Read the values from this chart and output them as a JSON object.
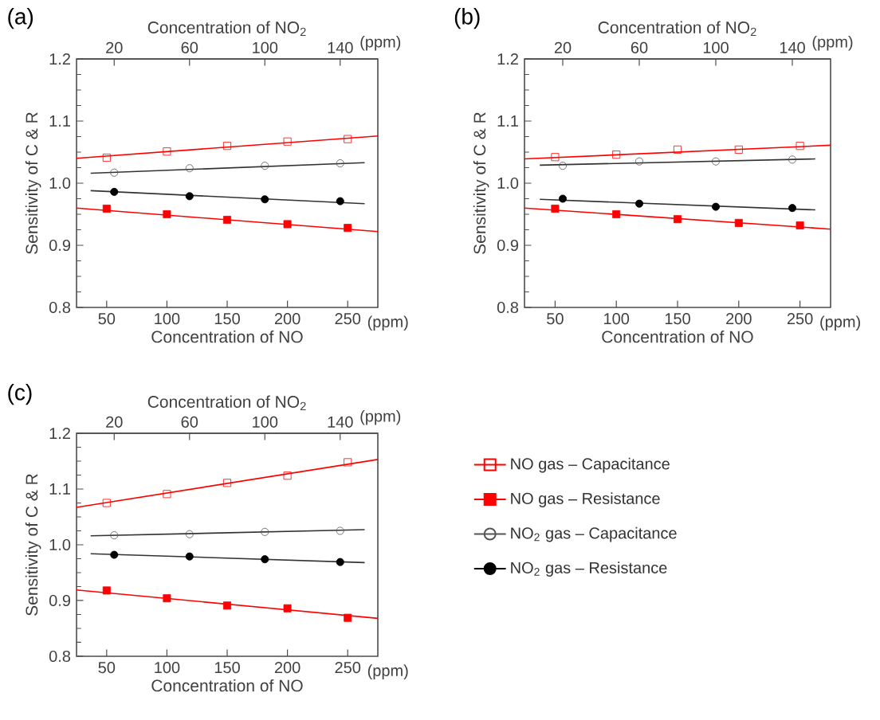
{
  "chart_data": [
    {
      "type": "scatter",
      "title": "(a)",
      "xlabel": "Concentration of NO",
      "x2label": "Concentration of NO$_{2}$",
      "ylabel": "Sensitivity of C & R",
      "annotations": [
        "(ppm)",
        "(ppm)"
      ],
      "xlim": [
        25,
        275
      ],
      "xticks": [
        50,
        100,
        150,
        200,
        250
      ],
      "x2lim": [
        0,
        160
      ],
      "x2ticks": [
        20,
        60,
        100,
        140
      ],
      "ylim": [
        0.8,
        1.2
      ],
      "yticks": [
        {
          "value": 0.8,
          "label": "0.8"
        },
        {
          "value": 0.9,
          "label": "0.9"
        },
        {
          "value": 1.0,
          "label": "1.0"
        },
        {
          "value": 1.1,
          "label": "1.1"
        },
        {
          "value": 1.2,
          "label": "1.2"
        }
      ],
      "series": [
        {
          "type": "scatter",
          "color": "#ff0000",
          "marker": "square-open",
          "x": [
            50,
            100,
            150,
            200,
            250
          ],
          "values": [
            1.041,
            1.051,
            1.06,
            1.067,
            1.071
          ]
        },
        {
          "type": "scatter",
          "color": "#ff0000",
          "marker": "square",
          "x": [
            50,
            100,
            150,
            200,
            250
          ],
          "values": [
            0.959,
            0.95,
            0.941,
            0.934,
            0.928
          ]
        },
        {
          "type": "scatter",
          "color": "#555555",
          "marker": "circle-open",
          "axis": "x2",
          "x": [
            20,
            60,
            100,
            140
          ],
          "values": [
            1.017,
            1.024,
            1.028,
            1.032
          ]
        },
        {
          "type": "scatter",
          "color": "#000000",
          "marker": "circle",
          "axis": "x2",
          "x": [
            20,
            60,
            100,
            140
          ],
          "values": [
            0.986,
            0.979,
            0.974,
            0.971
          ]
        },
        {
          "type": "line",
          "color": "#ff0000",
          "x": [
            25,
            275
          ],
          "values": [
            1.04,
            1.076
          ]
        },
        {
          "type": "line",
          "color": "#ff0000",
          "x": [
            25,
            275
          ],
          "values": [
            0.96,
            0.922
          ]
        },
        {
          "type": "line",
          "color": "#333333",
          "axis": "x2",
          "x": [
            7.5,
            153
          ],
          "values": [
            1.016,
            1.033
          ]
        },
        {
          "type": "line",
          "color": "#333333",
          "axis": "x2",
          "x": [
            7.5,
            153
          ],
          "values": [
            0.988,
            0.967
          ]
        }
      ]
    },
    {
      "type": "scatter",
      "title": "(b)",
      "xlabel": "Concentration of NO",
      "x2label": "Concentration of NO$_{2}$",
      "ylabel": "Sensitivity of C & R",
      "annotations": [
        "(ppm)",
        "(ppm)"
      ],
      "xlim": [
        25,
        275
      ],
      "xticks": [
        50,
        100,
        150,
        200,
        250
      ],
      "x2lim": [
        0,
        160
      ],
      "x2ticks": [
        20,
        60,
        100,
        140
      ],
      "ylim": [
        0.8,
        1.2
      ],
      "yticks": [
        {
          "value": 0.8,
          "label": "0.8"
        },
        {
          "value": 0.9,
          "label": "0.9"
        },
        {
          "value": 1.0,
          "label": "1.0"
        },
        {
          "value": 1.1,
          "label": "1.1"
        },
        {
          "value": 1.2,
          "label": "1.2"
        }
      ],
      "series": [
        {
          "type": "scatter",
          "color": "#ff0000",
          "marker": "square-open",
          "x": [
            50,
            100,
            150,
            200,
            250
          ],
          "values": [
            1.042,
            1.046,
            1.054,
            1.054,
            1.06
          ]
        },
        {
          "type": "scatter",
          "color": "#ff0000",
          "marker": "square",
          "x": [
            50,
            100,
            150,
            200,
            250
          ],
          "values": [
            0.959,
            0.95,
            0.942,
            0.936,
            0.932
          ]
        },
        {
          "type": "scatter",
          "color": "#555555",
          "marker": "circle-open",
          "axis": "x2",
          "x": [
            20,
            60,
            100,
            140
          ],
          "values": [
            1.028,
            1.035,
            1.035,
            1.038
          ]
        },
        {
          "type": "scatter",
          "color": "#000000",
          "marker": "circle",
          "axis": "x2",
          "x": [
            20,
            60,
            100,
            140
          ],
          "values": [
            0.975,
            0.967,
            0.962,
            0.96
          ]
        },
        {
          "type": "line",
          "color": "#ff0000",
          "x": [
            25,
            275
          ],
          "values": [
            1.039,
            1.061
          ]
        },
        {
          "type": "line",
          "color": "#ff0000",
          "x": [
            25,
            275
          ],
          "values": [
            0.96,
            0.926
          ]
        },
        {
          "type": "line",
          "color": "#333333",
          "axis": "x2",
          "x": [
            8,
            152
          ],
          "values": [
            1.029,
            1.039
          ]
        },
        {
          "type": "line",
          "color": "#333333",
          "axis": "x2",
          "x": [
            8,
            152
          ],
          "values": [
            0.974,
            0.957
          ]
        }
      ]
    },
    {
      "type": "scatter",
      "title": "(c)",
      "xlabel": "Concentration of NO",
      "x2label": "Concentration of NO$_{2}$",
      "ylabel": "Sensitivity of C & R",
      "annotations": [
        "(ppm)",
        "(ppm)"
      ],
      "legend": "right",
      "xlim": [
        25,
        275
      ],
      "xticks": [
        50,
        100,
        150,
        200,
        250
      ],
      "x2lim": [
        0,
        160
      ],
      "x2ticks": [
        20,
        60,
        100,
        140
      ],
      "ylim": [
        0.8,
        1.2
      ],
      "yticks": [
        {
          "value": 0.8,
          "label": "0.8"
        },
        {
          "value": 0.9,
          "label": "0.9"
        },
        {
          "value": 1.0,
          "label": "1.0"
        },
        {
          "value": 1.1,
          "label": "1.1"
        },
        {
          "value": 1.2,
          "label": "1.2"
        }
      ],
      "series": [
        {
          "name": "NO gas – Capacitance",
          "type": "scatter",
          "color": "#ff0000",
          "marker": "square-open",
          "x": [
            50,
            100,
            150,
            200,
            250
          ],
          "values": [
            1.075,
            1.091,
            1.111,
            1.124,
            1.148
          ]
        },
        {
          "name": "NO gas  – Resistance",
          "type": "scatter",
          "color": "#ff0000",
          "marker": "square",
          "x": [
            50,
            100,
            150,
            200,
            250
          ],
          "values": [
            0.918,
            0.904,
            0.891,
            0.886,
            0.869
          ]
        },
        {
          "name": "NO$_{2}$ gas – Capacitance",
          "type": "scatter",
          "color": "#555555",
          "marker": "circle-open",
          "axis": "x2",
          "x": [
            20,
            60,
            100,
            140
          ],
          "values": [
            1.017,
            1.019,
            1.023,
            1.025
          ]
        },
        {
          "name": "NO$_{2}$ gas – Resistance",
          "type": "scatter",
          "color": "#000000",
          "marker": "circle",
          "axis": "x2",
          "x": [
            20,
            60,
            100,
            140
          ],
          "values": [
            0.982,
            0.979,
            0.974,
            0.969
          ]
        },
        {
          "type": "line",
          "color": "#ff0000",
          "x": [
            25,
            275
          ],
          "values": [
            1.067,
            1.153
          ]
        },
        {
          "type": "line",
          "color": "#ff0000",
          "x": [
            25,
            275
          ],
          "values": [
            0.919,
            0.868
          ]
        },
        {
          "type": "line",
          "color": "#333333",
          "axis": "x2",
          "x": [
            7.5,
            153
          ],
          "values": [
            1.016,
            1.027
          ]
        },
        {
          "type": "line",
          "color": "#333333",
          "axis": "x2",
          "x": [
            7.5,
            153
          ],
          "values": [
            0.984,
            0.968
          ]
        }
      ]
    }
  ]
}
